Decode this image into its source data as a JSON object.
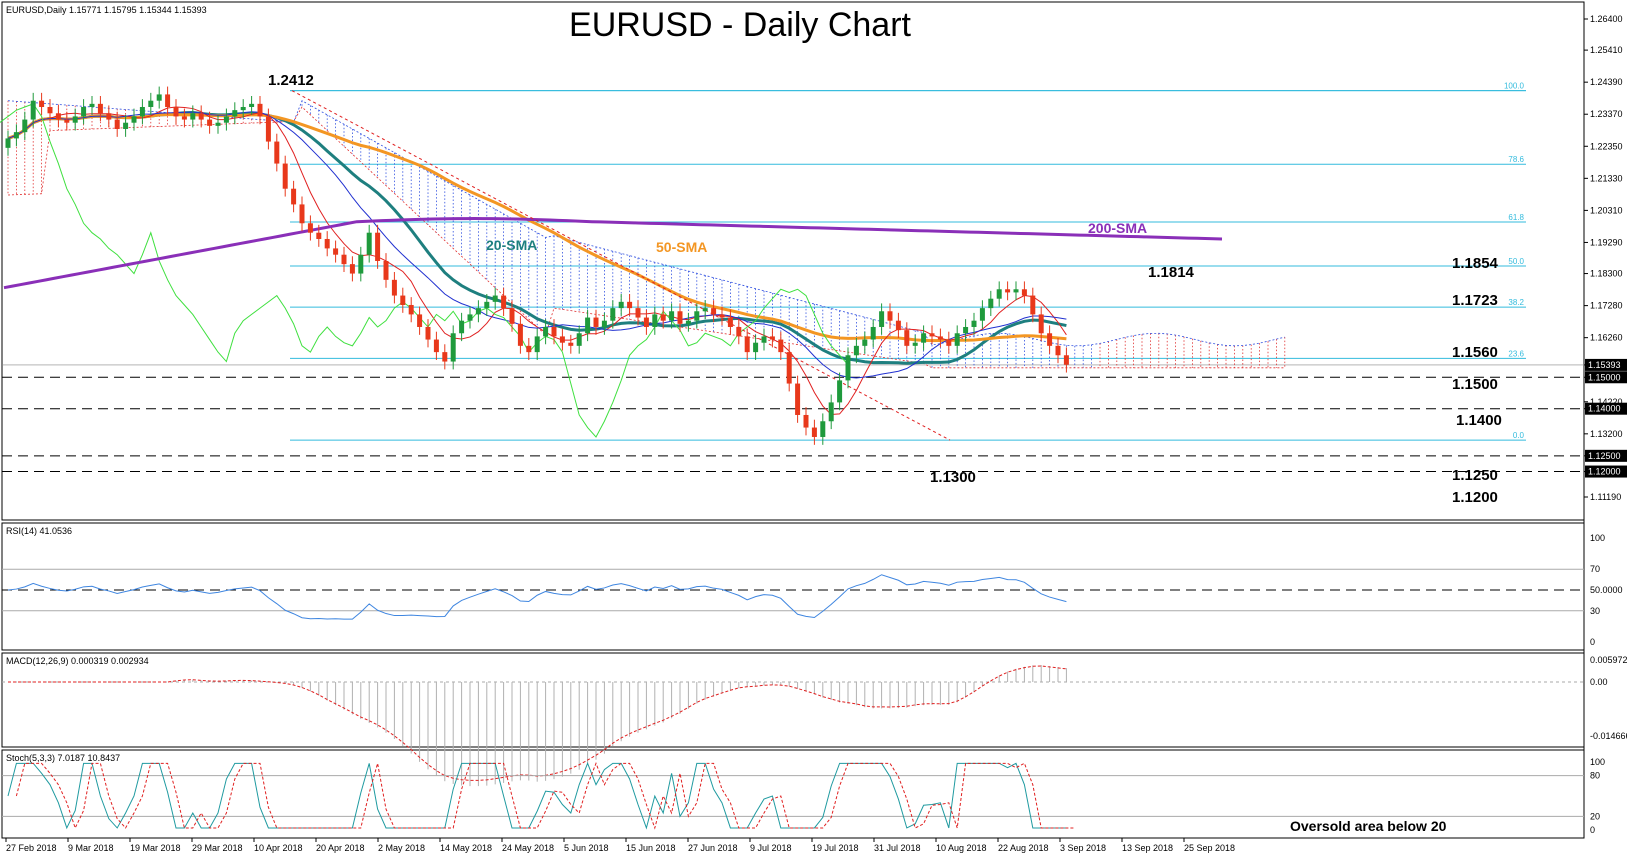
{
  "chart_data": {
    "type": "candlestick",
    "symbol_header": "EURUSD,Daily  1.15771 1.15795 1.15344 1.15393",
    "title": "EURUSD - Daily Chart",
    "price_axis_labels": [
      "1.26400",
      "1.25410",
      "1.24390",
      "1.23370",
      "1.22350",
      "1.21330",
      "1.20310",
      "1.19290",
      "1.18300",
      "1.17280",
      "1.16260",
      "1.15393",
      "1.15000",
      "1.14220",
      "1.14000",
      "1.13200",
      "1.12500",
      "1.12000",
      "1.11190"
    ],
    "date_labels": [
      "27 Feb 2018",
      "9 Mar 2018",
      "19 Mar 2018",
      "29 Mar 2018",
      "10 Apr 2018",
      "20 Apr 2018",
      "2 May 2018",
      "14 May 2018",
      "24 May 2018",
      "5 Jun 2018",
      "15 Jun 2018",
      "27 Jun 2018",
      "9 Jul 2018",
      "19 Jul 2018",
      "31 Jul 2018",
      "10 Aug 2018",
      "22 Aug 2018",
      "3 Sep 2018",
      "13 Sep 2018",
      "25 Sep 2018"
    ],
    "ohlc_approx_close": [
      1.226,
      1.228,
      1.232,
      1.238,
      1.236,
      1.234,
      1.232,
      1.231,
      1.233,
      1.236,
      1.237,
      1.234,
      1.232,
      1.229,
      1.231,
      1.233,
      1.236,
      1.238,
      1.24,
      1.236,
      1.233,
      1.232,
      1.234,
      1.232,
      1.23,
      1.231,
      1.233,
      1.235,
      1.236,
      1.237,
      1.233,
      1.225,
      1.218,
      1.21,
      1.205,
      1.199,
      1.196,
      1.194,
      1.191,
      1.189,
      1.186,
      1.183,
      1.189,
      1.196,
      1.187,
      1.181,
      1.176,
      1.173,
      1.17,
      1.166,
      1.162,
      1.158,
      1.155,
      1.164,
      1.168,
      1.17,
      1.172,
      1.174,
      1.176,
      1.172,
      1.167,
      1.16,
      1.158,
      1.163,
      1.166,
      1.163,
      1.161,
      1.16,
      1.164,
      1.169,
      1.166,
      1.168,
      1.172,
      1.174,
      1.172,
      1.169,
      1.166,
      1.17,
      1.168,
      1.171,
      1.167,
      1.168,
      1.171,
      1.172,
      1.17,
      1.169,
      1.166,
      1.163,
      1.158,
      1.161,
      1.163,
      1.162,
      1.158,
      1.148,
      1.138,
      1.134,
      1.131,
      1.136,
      1.142,
      1.149,
      1.157,
      1.16,
      1.162,
      1.166,
      1.171,
      1.168,
      1.165,
      1.16,
      1.161,
      1.164,
      1.163,
      1.162,
      1.16,
      1.164,
      1.166,
      1.168,
      1.172,
      1.175,
      1.178,
      1.177,
      1.178,
      1.176,
      1.17,
      1.164,
      1.16,
      1.157,
      1.154
    ],
    "indicators_on_price": [
      "20-SMA",
      "50-SMA",
      "200-SMA",
      "Ichimoku Cloud"
    ],
    "level_labels": [
      {
        "text": "1.2412",
        "price": 1.2412
      },
      {
        "text": "1.1814",
        "price": 1.1814
      },
      {
        "text": "1.1854",
        "price": 1.1854
      },
      {
        "text": "1.1723",
        "price": 1.1723
      },
      {
        "text": "1.1560",
        "price": 1.156
      },
      {
        "text": "1.1500",
        "price": 1.15
      },
      {
        "text": "1.1400",
        "price": 1.14
      },
      {
        "text": "1.1300",
        "price": 1.13
      },
      {
        "text": "1.1250",
        "price": 1.125
      },
      {
        "text": "1.1200",
        "price": 1.12
      }
    ],
    "fib_levels": [
      {
        "label": "100.0",
        "price": 1.2412
      },
      {
        "label": "78.6",
        "price": 1.2178
      },
      {
        "label": "61.8",
        "price": 1.1994
      },
      {
        "label": "50.0",
        "price": 1.1854
      },
      {
        "label": "38.2",
        "price": 1.1723
      },
      {
        "label": "23.6",
        "price": 1.156
      },
      {
        "label": "0.0",
        "price": 1.13
      }
    ],
    "dashed_levels": [
      1.15,
      1.14,
      1.125,
      1.12
    ],
    "sma_labels": {
      "sma20": "20-SMA",
      "sma50": "50-SMA",
      "sma200": "200-SMA"
    },
    "rsi": {
      "header": "RSI(14) 41.0536",
      "axis": [
        "100",
        "70",
        "50.0000",
        "30",
        "0"
      ],
      "last": 41.05
    },
    "macd": {
      "header": "MACD(12,26,9) 0.000319 0.002934",
      "axis": [
        "0.005972",
        "0.00",
        "-0.014666"
      ]
    },
    "stoch": {
      "header": "Stoch(5,3,3) 7.0187 10.8437",
      "axis": [
        "100",
        "80",
        "20",
        "0"
      ],
      "note": "Oversold area below 20"
    }
  },
  "colors": {
    "bull": "#1f9a3c",
    "bear": "#e8381b",
    "sma20": "#1e7f7f",
    "sma50": "#f39623",
    "sma200": "#8a2fb8",
    "cloud_bull": "#3050e0",
    "cloud_bear": "#e03030",
    "chikou": "#3fe03f",
    "fib": "#33bbdd",
    "rsi": "#3f86e0"
  }
}
